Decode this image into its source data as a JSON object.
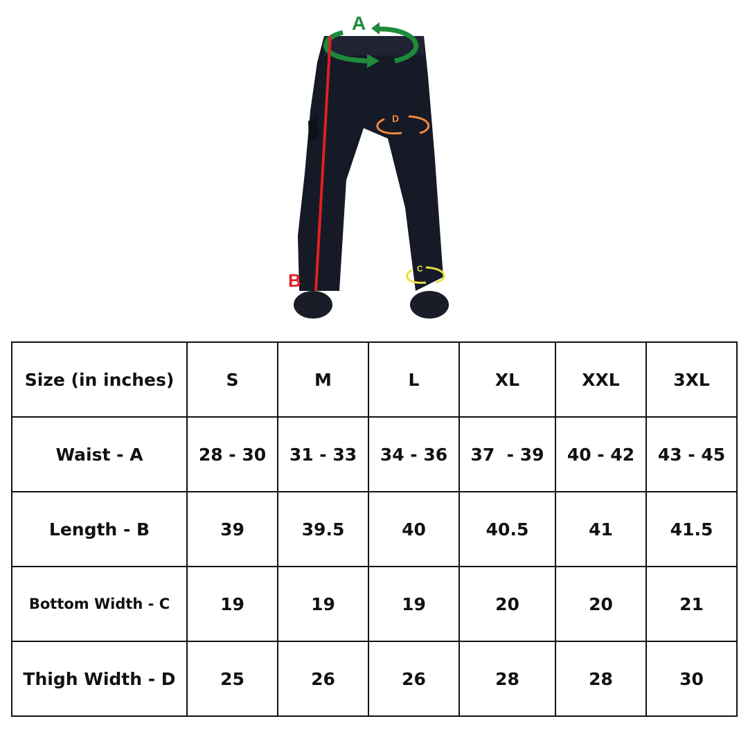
{
  "illustration": {
    "labels": {
      "waist": "A",
      "length": "B",
      "bottom": "C",
      "thigh": "D"
    },
    "colors": {
      "waist": "#1e8a3a",
      "length": "#e02020",
      "bottom": "#e6e040",
      "thigh": "#f08a3a",
      "pants": "#161a26"
    }
  },
  "table": {
    "header": {
      "label": "Size (in inches)",
      "sizes": [
        "S",
        "M",
        "L",
        "XL",
        "XXL",
        "3XL"
      ]
    },
    "rows": [
      {
        "label": "Waist - A",
        "values": [
          "28 - 30",
          "31 - 33",
          "34 - 36",
          "37  - 39",
          "40 - 42",
          "43 - 45"
        ]
      },
      {
        "label": "Length - B",
        "values": [
          "39",
          "39.5",
          "40",
          "40.5",
          "41",
          "41.5"
        ]
      },
      {
        "label": "Bottom Width - C",
        "values": [
          "19",
          "19",
          "19",
          "20",
          "20",
          "21"
        ]
      },
      {
        "label": "Thigh Width - D",
        "values": [
          "25",
          "26",
          "26",
          "28",
          "28",
          "30"
        ]
      }
    ]
  }
}
